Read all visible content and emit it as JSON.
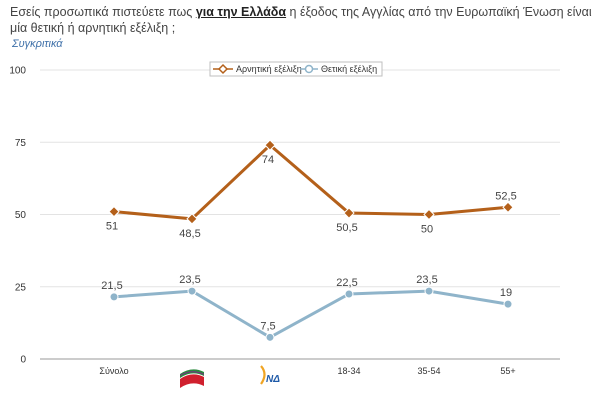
{
  "question": {
    "part1": "Εσείς προσωπικά πιστεύετε πως ",
    "emphasis": "για την Ελλάδα",
    "part2": " η έξοδος της Αγγλίας από την Ευρωπαϊκή Ένωση είναι μία θετική ή αρνητική εξέλιξη ;"
  },
  "subtitle": "Συγκριτικά",
  "chart_data": {
    "type": "line",
    "categories": [
      "Σύνολο",
      "ΣΥΡΙΖΑ",
      "ΝΔ",
      "18-34",
      "35-54",
      "55+"
    ],
    "category_logos": [
      "",
      "syriza-logo",
      "nd-logo",
      "",
      "",
      ""
    ],
    "logo_text": {
      "nd": "ΝΔ"
    },
    "ylim": [
      0,
      100
    ],
    "yticks": [
      0,
      25,
      50,
      75,
      100
    ],
    "ytick_labels": [
      "0",
      "25",
      "50",
      "75",
      "100"
    ],
    "legend_position": "top-center",
    "grid": true,
    "series": [
      {
        "name": "Αρνητική εξέλιξη",
        "color": "#b4601a",
        "marker": "diamond",
        "values": [
          51,
          48.5,
          74,
          50.5,
          50,
          52.5
        ],
        "labels": [
          "51",
          "48,5",
          "74",
          "50,5",
          "50",
          "52,5"
        ],
        "label_pos": [
          "below",
          "below",
          "below",
          "below",
          "below",
          "above"
        ]
      },
      {
        "name": "Θετική εξέλιξη",
        "color": "#8fb4ca",
        "marker": "circle",
        "values": [
          21.5,
          23.5,
          7.5,
          22.5,
          23.5,
          19
        ],
        "labels": [
          "21,5",
          "23,5",
          "7,5",
          "22,5",
          "23,5",
          "19"
        ],
        "label_pos": [
          "above",
          "above",
          "above",
          "above",
          "above",
          "above"
        ]
      }
    ]
  }
}
